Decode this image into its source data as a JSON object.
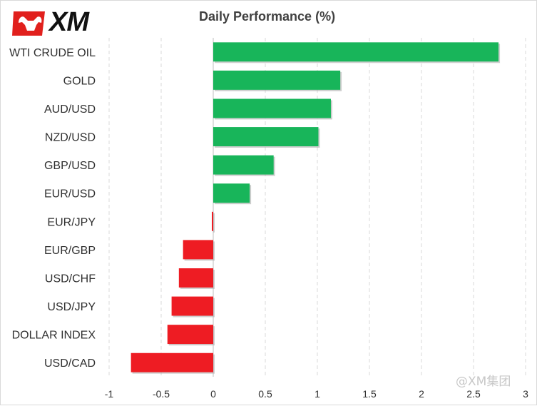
{
  "brand": {
    "logo_text": "XM",
    "logo_icon": "bull-icon",
    "logo_color": "#e1201d"
  },
  "watermark": {
    "text": "@XM集团"
  },
  "colors": {
    "positive": "#18b55a",
    "negative": "#ee1c23",
    "grid": "#d9d9d9",
    "axis": "#bfbfbf"
  },
  "chart_data": {
    "type": "bar",
    "orientation": "horizontal",
    "title": "Daily Performance  (%)",
    "xlabel": "",
    "ylabel": "",
    "categories": [
      "WTI CRUDE OIL",
      "GOLD",
      "AUD/USD",
      "NZD/USD",
      "GBP/USD",
      "EUR/USD",
      "EUR/JPY",
      "EUR/GBP",
      "USD/CHF",
      "USD/JPY",
      "DOLLAR INDEX",
      "USD/CAD"
    ],
    "values": [
      2.74,
      1.22,
      1.13,
      1.01,
      0.58,
      0.35,
      -0.01,
      -0.29,
      -0.33,
      -0.4,
      -0.44,
      -0.79
    ],
    "xlim": [
      -1,
      3
    ],
    "xticks": [
      -1,
      -0.5,
      0,
      0.5,
      1,
      1.5,
      2,
      2.5,
      3
    ],
    "xtick_labels": [
      "-1",
      "-0.5",
      "0",
      "0.5",
      "1",
      "1.5",
      "2",
      "2.5",
      "3"
    ],
    "grid": "vertical dashed",
    "legend": "none"
  }
}
